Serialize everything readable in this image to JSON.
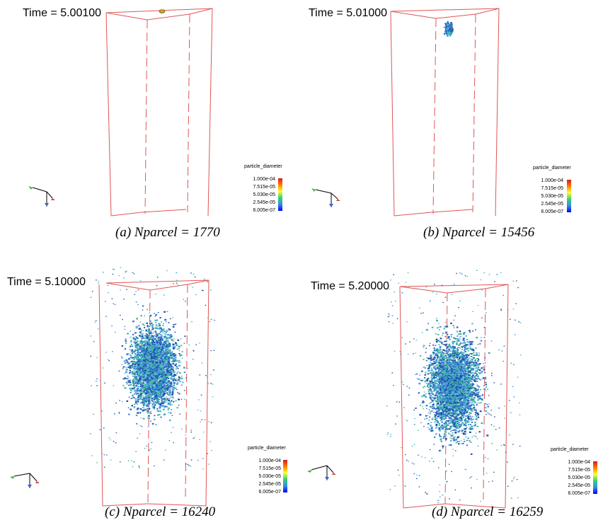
{
  "panels": [
    {
      "id": "a",
      "time_label": "Time = 5.00100",
      "caption": "(a) Nparcel = 1770",
      "colorbar": {
        "title": "particle_diameter",
        "ticks": [
          "1.000e-04",
          "7.515e-05",
          "5.030e-05",
          "2.545e-05",
          "6.005e-07"
        ]
      },
      "spray_extent": "tiny"
    },
    {
      "id": "b",
      "time_label": "Time = 5.01000",
      "caption": "(b) Nparcel = 15456",
      "colorbar": {
        "title": "particle_diameter",
        "ticks": [
          "1.000e-04",
          "7.515e-05",
          "5.030e-05",
          "2.545e-05",
          "6.005e-07"
        ]
      },
      "spray_extent": "small"
    },
    {
      "id": "c",
      "time_label": "Time = 5.10000",
      "caption": "(c) Nparcel = 16240",
      "colorbar": {
        "title": "particle_diameter",
        "ticks": [
          "1.000e-04",
          "7.515e-05",
          "5.030e-05",
          "2.545e-05",
          "6.005e-07"
        ]
      },
      "spray_extent": "medium"
    },
    {
      "id": "d",
      "time_label": "Time = 5.20000",
      "caption": "(d) Nparcel = 16259",
      "colorbar": {
        "title": "particle_diameter",
        "ticks": [
          "1.000e-04",
          "7.515e-05",
          "5.030e-05",
          "2.545e-05",
          "6.005e-07"
        ]
      },
      "spray_extent": "large"
    }
  ],
  "colors": {
    "domain_box": "#e05555",
    "axis_x": "#d04040",
    "axis_y": "#40b040",
    "axis_z": "#4060d0",
    "particle_main": "#2a6fc8",
    "particle_alt": "#3bb3b0"
  }
}
